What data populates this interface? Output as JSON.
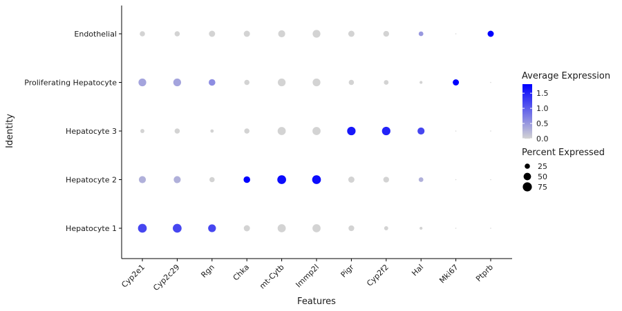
{
  "chart_data": {
    "type": "scatter",
    "subtype": "dot-plot",
    "xlabel": "Features",
    "ylabel": "Identity",
    "features": [
      "Cyp2e1",
      "Cyp2c29",
      "Rgn",
      "Chka",
      "mt-Cytb",
      "Immp2l",
      "Pigr",
      "Cyp2f2",
      "Hal",
      "Mki67",
      "Ptprb"
    ],
    "identities": [
      "Hepatocyte 1",
      "Hepatocyte 2",
      "Hepatocyte 3",
      "Proliferating Hepatocyte",
      "Endothelial"
    ],
    "color_legend": {
      "title": "Average Expression",
      "ticks": [
        "1.5",
        "1.0",
        "0.5",
        "0.0"
      ],
      "tick_values": [
        1.5,
        1.0,
        0.5,
        0.0
      ],
      "range": [
        0.0,
        1.8
      ],
      "low_color": "#d3d3d3",
      "high_color": "#0000ff"
    },
    "size_legend": {
      "title": "Percent Expressed",
      "labels": [
        "25",
        "50",
        "75"
      ],
      "values": [
        25,
        50,
        75
      ]
    },
    "grid": false,
    "legend_position": "right",
    "points": [
      {
        "identity": "Endothelial",
        "feature": "Cyp2e1",
        "pct": 25,
        "avg": 0.0
      },
      {
        "identity": "Endothelial",
        "feature": "Cyp2c29",
        "pct": 25,
        "avg": 0.0
      },
      {
        "identity": "Endothelial",
        "feature": "Rgn",
        "pct": 35,
        "avg": 0.0
      },
      {
        "identity": "Endothelial",
        "feature": "Chka",
        "pct": 35,
        "avg": 0.0
      },
      {
        "identity": "Endothelial",
        "feature": "mt-Cytb",
        "pct": 45,
        "avg": 0.0
      },
      {
        "identity": "Endothelial",
        "feature": "Immp2l",
        "pct": 55,
        "avg": 0.0
      },
      {
        "identity": "Endothelial",
        "feature": "Pigr",
        "pct": 35,
        "avg": 0.0
      },
      {
        "identity": "Endothelial",
        "feature": "Cyp2f2",
        "pct": 30,
        "avg": 0.0
      },
      {
        "identity": "Endothelial",
        "feature": "Hal",
        "pct": 20,
        "avg": 0.5
      },
      {
        "identity": "Endothelial",
        "feature": "Mki67",
        "pct": 1,
        "avg": 0.0
      },
      {
        "identity": "Endothelial",
        "feature": "Ptprb",
        "pct": 35,
        "avg": 1.8
      },
      {
        "identity": "Proliferating Hepatocyte",
        "feature": "Cyp2e1",
        "pct": 55,
        "avg": 0.4
      },
      {
        "identity": "Proliferating Hepatocyte",
        "feature": "Cyp2c29",
        "pct": 55,
        "avg": 0.4
      },
      {
        "identity": "Proliferating Hepatocyte",
        "feature": "Rgn",
        "pct": 40,
        "avg": 0.6
      },
      {
        "identity": "Proliferating Hepatocyte",
        "feature": "Chka",
        "pct": 25,
        "avg": 0.0
      },
      {
        "identity": "Proliferating Hepatocyte",
        "feature": "mt-Cytb",
        "pct": 55,
        "avg": 0.0
      },
      {
        "identity": "Proliferating Hepatocyte",
        "feature": "Immp2l",
        "pct": 55,
        "avg": 0.0
      },
      {
        "identity": "Proliferating Hepatocyte",
        "feature": "Pigr",
        "pct": 25,
        "avg": 0.0
      },
      {
        "identity": "Proliferating Hepatocyte",
        "feature": "Cyp2f2",
        "pct": 20,
        "avg": 0.0
      },
      {
        "identity": "Proliferating Hepatocyte",
        "feature": "Hal",
        "pct": 8,
        "avg": 0.0
      },
      {
        "identity": "Proliferating Hepatocyte",
        "feature": "Mki67",
        "pct": 35,
        "avg": 1.8
      },
      {
        "identity": "Proliferating Hepatocyte",
        "feature": "Ptprb",
        "pct": 1,
        "avg": 0.0
      },
      {
        "identity": "Hepatocyte 3",
        "feature": "Cyp2e1",
        "pct": 15,
        "avg": 0.0
      },
      {
        "identity": "Hepatocyte 3",
        "feature": "Cyp2c29",
        "pct": 25,
        "avg": 0.0
      },
      {
        "identity": "Hepatocyte 3",
        "feature": "Rgn",
        "pct": 10,
        "avg": 0.0
      },
      {
        "identity": "Hepatocyte 3",
        "feature": "Chka",
        "pct": 25,
        "avg": 0.0
      },
      {
        "identity": "Hepatocyte 3",
        "feature": "mt-Cytb",
        "pct": 60,
        "avg": 0.0
      },
      {
        "identity": "Hepatocyte 3",
        "feature": "Immp2l",
        "pct": 60,
        "avg": 0.0
      },
      {
        "identity": "Hepatocyte 3",
        "feature": "Pigr",
        "pct": 65,
        "avg": 1.6
      },
      {
        "identity": "Hepatocyte 3",
        "feature": "Cyp2f2",
        "pct": 65,
        "avg": 1.5
      },
      {
        "identity": "Hepatocyte 3",
        "feature": "Hal",
        "pct": 45,
        "avg": 1.2
      },
      {
        "identity": "Hepatocyte 3",
        "feature": "Mki67",
        "pct": 1,
        "avg": 0.0
      },
      {
        "identity": "Hepatocyte 3",
        "feature": "Ptprb",
        "pct": 1,
        "avg": 0.0
      },
      {
        "identity": "Hepatocyte 2",
        "feature": "Cyp2e1",
        "pct": 45,
        "avg": 0.3
      },
      {
        "identity": "Hepatocyte 2",
        "feature": "Cyp2c29",
        "pct": 45,
        "avg": 0.3
      },
      {
        "identity": "Hepatocyte 2",
        "feature": "Rgn",
        "pct": 25,
        "avg": 0.0
      },
      {
        "identity": "Hepatocyte 2",
        "feature": "Chka",
        "pct": 40,
        "avg": 1.8
      },
      {
        "identity": "Hepatocyte 2",
        "feature": "mt-Cytb",
        "pct": 70,
        "avg": 1.7
      },
      {
        "identity": "Hepatocyte 2",
        "feature": "Immp2l",
        "pct": 70,
        "avg": 1.7
      },
      {
        "identity": "Hepatocyte 2",
        "feature": "Pigr",
        "pct": 35,
        "avg": 0.0
      },
      {
        "identity": "Hepatocyte 2",
        "feature": "Cyp2f2",
        "pct": 30,
        "avg": 0.0
      },
      {
        "identity": "Hepatocyte 2",
        "feature": "Hal",
        "pct": 20,
        "avg": 0.3
      },
      {
        "identity": "Hepatocyte 2",
        "feature": "Mki67",
        "pct": 1,
        "avg": 0.0
      },
      {
        "identity": "Hepatocyte 2",
        "feature": "Ptprb",
        "pct": 1,
        "avg": 0.0
      },
      {
        "identity": "Hepatocyte 1",
        "feature": "Cyp2e1",
        "pct": 70,
        "avg": 1.2
      },
      {
        "identity": "Hepatocyte 1",
        "feature": "Cyp2c29",
        "pct": 70,
        "avg": 1.2
      },
      {
        "identity": "Hepatocyte 1",
        "feature": "Rgn",
        "pct": 55,
        "avg": 1.2
      },
      {
        "identity": "Hepatocyte 1",
        "feature": "Chka",
        "pct": 35,
        "avg": 0.0
      },
      {
        "identity": "Hepatocyte 1",
        "feature": "mt-Cytb",
        "pct": 60,
        "avg": 0.0
      },
      {
        "identity": "Hepatocyte 1",
        "feature": "Immp2l",
        "pct": 60,
        "avg": 0.0
      },
      {
        "identity": "Hepatocyte 1",
        "feature": "Pigr",
        "pct": 30,
        "avg": 0.0
      },
      {
        "identity": "Hepatocyte 1",
        "feature": "Cyp2f2",
        "pct": 15,
        "avg": 0.0
      },
      {
        "identity": "Hepatocyte 1",
        "feature": "Hal",
        "pct": 8,
        "avg": 0.0
      },
      {
        "identity": "Hepatocyte 1",
        "feature": "Mki67",
        "pct": 1,
        "avg": 0.0
      },
      {
        "identity": "Hepatocyte 1",
        "feature": "Ptprb",
        "pct": 1,
        "avg": 0.0
      }
    ]
  }
}
